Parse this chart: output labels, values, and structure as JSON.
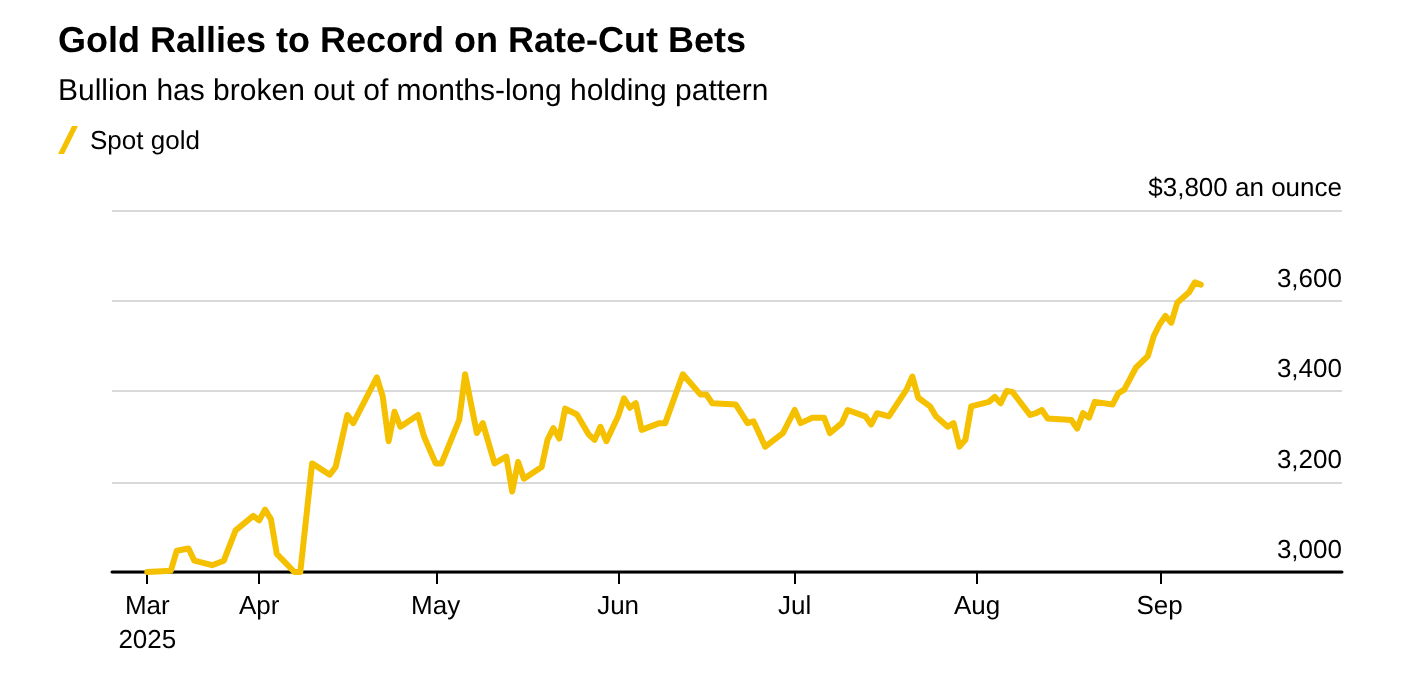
{
  "chart_data": {
    "type": "line",
    "title": "Gold Rallies to Record on Rate-Cut Bets",
    "subtitle": "Bullion has broken out of months-long holding pattern",
    "series": [
      {
        "name": "Spot gold",
        "color": "#f5c000",
        "x": [
          "2025-03-13",
          "2025-03-17",
          "2025-03-18",
          "2025-03-20",
          "2025-03-21",
          "2025-03-24",
          "2025-03-26",
          "2025-03-28",
          "2025-03-31",
          "2025-04-01",
          "2025-04-02",
          "2025-04-03",
          "2025-04-04",
          "2025-04-07",
          "2025-04-08",
          "2025-04-10",
          "2025-04-13",
          "2025-04-14",
          "2025-04-16",
          "2025-04-17",
          "2025-04-21",
          "2025-04-22",
          "2025-04-23",
          "2025-04-24",
          "2025-04-25",
          "2025-04-28",
          "2025-04-29",
          "2025-05-01",
          "2025-05-02",
          "2025-05-05",
          "2025-05-06",
          "2025-05-08",
          "2025-05-09",
          "2025-05-11",
          "2025-05-13",
          "2025-05-14",
          "2025-05-15",
          "2025-05-16",
          "2025-05-19",
          "2025-05-20",
          "2025-05-21",
          "2025-05-22",
          "2025-05-23",
          "2025-05-25",
          "2025-05-27",
          "2025-05-28",
          "2025-05-29",
          "2025-05-30",
          "2025-06-01",
          "2025-06-02",
          "2025-06-03",
          "2025-06-04",
          "2025-06-05",
          "2025-06-08",
          "2025-06-09",
          "2025-06-12",
          "2025-06-15",
          "2025-06-16",
          "2025-06-17",
          "2025-06-21",
          "2025-06-23",
          "2025-06-24",
          "2025-06-26",
          "2025-06-29",
          "2025-07-01",
          "2025-07-02",
          "2025-07-04",
          "2025-07-06",
          "2025-07-07",
          "2025-07-09",
          "2025-07-10",
          "2025-07-13",
          "2025-07-14",
          "2025-07-15",
          "2025-07-17",
          "2025-07-20",
          "2025-07-21",
          "2025-07-22",
          "2025-07-24",
          "2025-07-25",
          "2025-07-27",
          "2025-07-28",
          "2025-07-29",
          "2025-07-30",
          "2025-07-31",
          "2025-08-03",
          "2025-08-04",
          "2025-08-05",
          "2025-08-06",
          "2025-08-07",
          "2025-08-10",
          "2025-08-11",
          "2025-08-12",
          "2025-08-13",
          "2025-08-17",
          "2025-08-18",
          "2025-08-19",
          "2025-08-20",
          "2025-08-21",
          "2025-08-24",
          "2025-08-25",
          "2025-08-26",
          "2025-08-28",
          "2025-08-30",
          "2025-08-31",
          "2025-09-01",
          "2025-09-02",
          "2025-09-03",
          "2025-09-04",
          "2025-09-06",
          "2025-09-07",
          "2025-09-08"
        ],
        "values": [
          3000,
          3003,
          3047,
          3052,
          3025,
          3015,
          3025,
          3092,
          3124,
          3114,
          3138,
          3117,
          3040,
          3000,
          3000,
          3240,
          3215,
          3232,
          3347,
          3329,
          3430,
          3388,
          3289,
          3354,
          3321,
          3347,
          3300,
          3240,
          3240,
          3336,
          3437,
          3307,
          3329,
          3240,
          3255,
          3178,
          3243,
          3206,
          3232,
          3292,
          3318,
          3295,
          3361,
          3348,
          3304,
          3292,
          3321,
          3289,
          3344,
          3384,
          3363,
          3373,
          3314,
          3329,
          3329,
          3437,
          3392,
          3392,
          3373,
          3370,
          3329,
          3333,
          3277,
          3307,
          3358,
          3329,
          3341,
          3341,
          3307,
          3329,
          3358,
          3344,
          3326,
          3351,
          3344,
          3403,
          3432,
          3385,
          3366,
          3344,
          3321,
          3329,
          3277,
          3292,
          3366,
          3376,
          3387,
          3373,
          3400,
          3398,
          3347,
          3351,
          3358,
          3339,
          3336,
          3317,
          3351,
          3341,
          3376,
          3370,
          3395,
          3403,
          3452,
          3477,
          3521,
          3547,
          3566,
          3551,
          3595,
          3618,
          3640,
          3635
        ]
      }
    ],
    "xlim": [
      "2025-03-07",
      "2025-10-02"
    ],
    "xticks": [
      {
        "value": "2025-03-13",
        "label": "Mar\n2025"
      },
      {
        "value": "2025-04-01",
        "label": "Apr"
      },
      {
        "value": "2025-05-01",
        "label": "May"
      },
      {
        "value": "2025-06-01",
        "label": "Jun"
      },
      {
        "value": "2025-07-01",
        "label": "Jul"
      },
      {
        "value": "2025-08-01",
        "label": "Aug"
      },
      {
        "value": "2025-09-01",
        "label": "Sep"
      }
    ],
    "ylim": [
      3000,
      3800
    ],
    "yticks": [
      {
        "value": 3000,
        "label": "3,000"
      },
      {
        "value": 3200,
        "label": "3,200"
      },
      {
        "value": 3400,
        "label": "3,400"
      },
      {
        "value": 3600,
        "label": "3,600"
      },
      {
        "value": 3800,
        "label": "$3,800 an ounce"
      }
    ],
    "grid": "y",
    "legend": "top left",
    "marker": "none",
    "line_style": "solid"
  }
}
